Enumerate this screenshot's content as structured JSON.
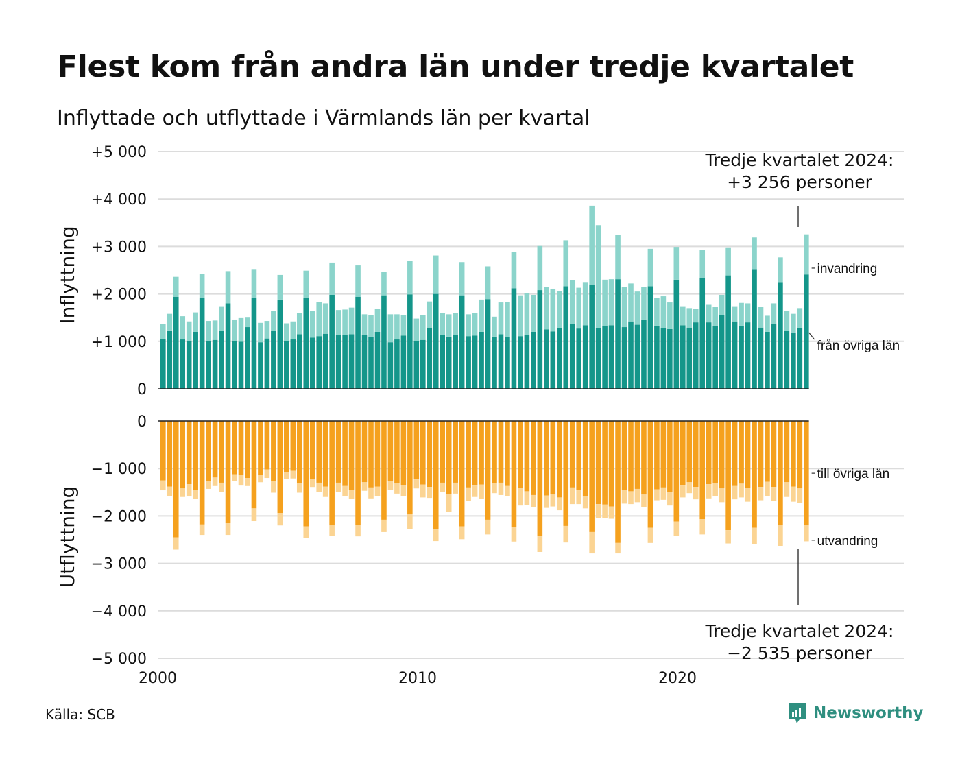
{
  "title": "Flest kom från andra län under tredje kvartalet",
  "subtitle": "Inflyttade och utflyttade i Värmlands län per kvartal",
  "source": "Källa: SCB",
  "brand": {
    "name": "Newsworthy",
    "icon": "newsworthy-logo-icon",
    "color": "#2f8f80"
  },
  "colors": {
    "in_domestic": "#14968a",
    "in_immigration": "#8bd4cb",
    "out_domestic": "#f5a11e",
    "out_emigration": "#fbd493",
    "grid": "#dcdcdc",
    "text": "#111111"
  },
  "annotations": {
    "top_line1": "Tredje kvartalet 2024:",
    "top_line2": "+3 256 personer",
    "bottom_line1": "Tredje kvartalet 2024:",
    "bottom_line2": "−2 535 personer"
  },
  "chart_data": [
    {
      "type": "bar",
      "stacked": true,
      "panel": "Inflyttning",
      "ylabel": "Inflyttning",
      "ylim": [
        0,
        5000
      ],
      "yticks": [
        0,
        1000,
        2000,
        3000,
        4000,
        5000
      ],
      "ytick_labels": [
        "0",
        "+1 000",
        "+2 000",
        "+3 000",
        "+4 000",
        "+5 000"
      ],
      "xlim": [
        2000,
        2028.5
      ],
      "xticks": [
        2000,
        2010,
        2020
      ],
      "xtick_labels": [
        "2000",
        "2010",
        "2020"
      ],
      "grid": true,
      "legend": "direct labels, right",
      "x_start": "2000 Q1",
      "x_frequency": "quarterly",
      "series": [
        {
          "name": "från övriga län",
          "values": [
            1050,
            1230,
            1940,
            1040,
            1000,
            1200,
            1920,
            1010,
            1030,
            1220,
            1800,
            1010,
            990,
            1300,
            1910,
            980,
            1060,
            1220,
            1880,
            1000,
            1040,
            1150,
            1910,
            1080,
            1110,
            1160,
            1980,
            1130,
            1140,
            1150,
            1940,
            1130,
            1090,
            1200,
            1970,
            980,
            1040,
            1120,
            1990,
            1000,
            1030,
            1290,
            2000,
            1140,
            1100,
            1140,
            1970,
            1110,
            1120,
            1200,
            1890,
            1100,
            1150,
            1090,
            2120,
            1110,
            1140,
            1200,
            2080,
            1250,
            1210,
            1280,
            2160,
            1370,
            1270,
            1340,
            2200,
            1280,
            1320,
            1340,
            2310,
            1300,
            1420,
            1350,
            1460,
            2160,
            1330,
            1280,
            1260,
            2300,
            1340,
            1290,
            1400,
            2340,
            1400,
            1330,
            1560,
            2390,
            1420,
            1330,
            1400,
            2510,
            1290,
            1200,
            1360,
            2250,
            1220,
            1180,
            1280,
            2410
          ]
        },
        {
          "name": "invandring",
          "values": [
            310,
            350,
            420,
            490,
            420,
            410,
            500,
            420,
            410,
            520,
            680,
            450,
            500,
            200,
            600,
            410,
            370,
            420,
            520,
            380,
            380,
            450,
            580,
            560,
            720,
            640,
            680,
            530,
            530,
            560,
            660,
            440,
            460,
            480,
            500,
            590,
            530,
            440,
            710,
            480,
            530,
            550,
            810,
            460,
            470,
            450,
            700,
            460,
            480,
            680,
            690,
            420,
            670,
            740,
            760,
            860,
            880,
            780,
            930,
            890,
            900,
            780,
            970,
            920,
            860,
            910,
            1660,
            2170,
            980,
            970,
            930,
            850,
            800,
            700,
            690,
            790,
            590,
            670,
            560,
            690,
            400,
            410,
            290,
            590,
            370,
            400,
            420,
            590,
            320,
            480,
            400,
            680,
            440,
            340,
            440,
            520,
            420,
            400,
            420,
            846
          ]
        }
      ]
    },
    {
      "type": "bar",
      "stacked": true,
      "panel": "Utflyttning",
      "ylabel": "Utflyttning",
      "ylim": [
        -5000,
        0
      ],
      "yticks": [
        0,
        -1000,
        -2000,
        -3000,
        -4000,
        -5000
      ],
      "ytick_labels": [
        "0",
        "−1 000",
        "−2 000",
        "−3 000",
        "−4 000",
        "−5 000"
      ],
      "xlim": [
        2000,
        2028.5
      ],
      "xticks": [
        2000,
        2010,
        2020
      ],
      "xtick_labels": [
        "2000",
        "2010",
        "2020"
      ],
      "grid": true,
      "legend": "direct labels, right",
      "x_start": "2000 Q1",
      "x_frequency": "quarterly",
      "series": [
        {
          "name": "till övriga län",
          "values": [
            -1250,
            -1380,
            -2450,
            -1420,
            -1330,
            -1450,
            -2180,
            -1260,
            -1190,
            -1300,
            -2150,
            -1120,
            -1140,
            -1200,
            -1840,
            -1140,
            -1020,
            -1270,
            -1940,
            -1070,
            -1050,
            -1310,
            -2220,
            -1220,
            -1300,
            -1380,
            -2200,
            -1300,
            -1370,
            -1450,
            -2190,
            -1290,
            -1400,
            -1380,
            -2080,
            -1260,
            -1310,
            -1350,
            -1960,
            -1230,
            -1340,
            -1390,
            -2270,
            -1300,
            -1540,
            -1300,
            -2220,
            -1400,
            -1360,
            -1340,
            -2080,
            -1310,
            -1300,
            -1370,
            -2240,
            -1410,
            -1480,
            -1560,
            -2430,
            -1570,
            -1550,
            -1610,
            -2210,
            -1400,
            -1460,
            -1580,
            -2340,
            -1750,
            -1760,
            -1800,
            -2570,
            -1450,
            -1480,
            -1430,
            -1550,
            -2250,
            -1440,
            -1400,
            -1500,
            -2120,
            -1360,
            -1290,
            -1390,
            -2070,
            -1330,
            -1310,
            -1420,
            -2300,
            -1370,
            -1320,
            -1410,
            -2250,
            -1390,
            -1280,
            -1390,
            -2190,
            -1290,
            -1380,
            -1420,
            -2200
          ]
        },
        {
          "name": "utvandring",
          "values": [
            -210,
            -200,
            -260,
            -180,
            -260,
            -190,
            -220,
            -170,
            -180,
            -200,
            -250,
            -150,
            -220,
            -170,
            -270,
            -150,
            -180,
            -240,
            -260,
            -150,
            -160,
            -200,
            -250,
            -170,
            -200,
            -220,
            -220,
            -190,
            -210,
            -190,
            -240,
            -180,
            -230,
            -200,
            -260,
            -190,
            -220,
            -230,
            -320,
            -190,
            -270,
            -230,
            -260,
            -190,
            -380,
            -230,
            -270,
            -290,
            -240,
            -300,
            -310,
            -210,
            -260,
            -210,
            -300,
            -370,
            -290,
            -260,
            -330,
            -260,
            -250,
            -270,
            -350,
            -350,
            -290,
            -260,
            -450,
            -290,
            -280,
            -260,
            -220,
            -290,
            -270,
            -280,
            -270,
            -320,
            -230,
            -260,
            -280,
            -300,
            -250,
            -230,
            -260,
            -320,
            -300,
            -270,
            -290,
            -280,
            -280,
            -290,
            -290,
            -350,
            -280,
            -300,
            -300,
            -440,
            -310,
            -320,
            -300,
            -335
          ]
        }
      ]
    }
  ]
}
